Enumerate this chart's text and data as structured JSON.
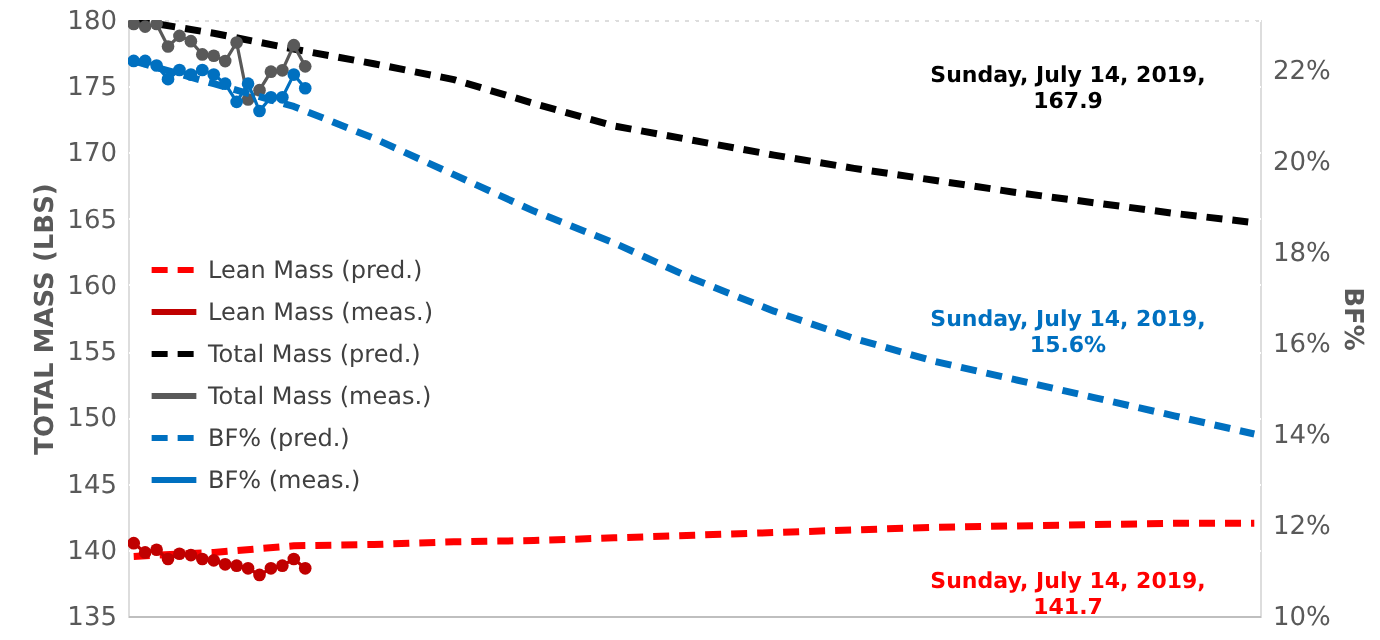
{
  "chart_data": {
    "type": "line",
    "ylabel": "TOTAL MASS (LBS)",
    "y2label": "BF%",
    "categories": [
      null,
      null,
      null,
      null,
      null,
      null,
      null,
      null,
      null,
      null,
      null,
      null,
      null,
      null,
      null,
      null,
      null,
      null,
      null,
      null,
      null,
      null,
      null,
      null,
      null,
      null,
      null,
      null,
      null,
      null,
      null,
      null,
      null,
      null,
      null,
      null,
      null,
      null,
      null,
      null,
      null,
      null,
      null,
      null,
      null,
      null,
      null,
      null,
      null,
      null,
      null,
      null,
      null,
      null,
      null,
      null,
      null,
      null,
      null,
      null,
      null,
      null,
      null,
      null,
      null,
      null,
      null,
      null,
      null,
      null,
      null,
      null,
      null,
      null,
      null,
      null,
      null,
      null,
      null,
      null,
      null,
      null,
      null,
      null,
      null,
      null,
      null,
      null,
      null,
      null,
      null,
      null,
      null,
      null,
      null,
      null,
      null,
      null,
      null
    ],
    "ylim": [
      135,
      180
    ],
    "yticks": [
      135,
      140,
      145,
      150,
      155,
      160,
      165,
      170,
      175,
      180
    ],
    "y2lim": [
      10,
      23.1
    ],
    "y2ticks": [
      {
        "value": 10,
        "label": "10%"
      },
      {
        "value": 12,
        "label": "12%"
      },
      {
        "value": 14,
        "label": "14%"
      },
      {
        "value": 16,
        "label": "16%"
      },
      {
        "value": 18,
        "label": "18%"
      },
      {
        "value": 20,
        "label": "20%"
      },
      {
        "value": 22,
        "label": "22%"
      }
    ],
    "tick_labels": "y",
    "grid": true,
    "legend": "left",
    "series": [
      {
        "name": "Lean Mass (pred.)",
        "color": "#ff0000",
        "line_style": "dashed",
        "marker": "none",
        "values": [
          139.5,
          null,
          null,
          null,
          null,
          null,
          null,
          139.8,
          null,
          null,
          null,
          null,
          null,
          null,
          140.3,
          null,
          null,
          null,
          null,
          null,
          null,
          140.4,
          null,
          null,
          null,
          null,
          null,
          null,
          140.6,
          null,
          null,
          null,
          null,
          null,
          null,
          140.7,
          null,
          null,
          null,
          null,
          null,
          null,
          140.9,
          null,
          null,
          null,
          null,
          null,
          null,
          141.1,
          null,
          null,
          null,
          null,
          null,
          null,
          141.3,
          null,
          null,
          null,
          null,
          null,
          null,
          141.5,
          null,
          null,
          null,
          null,
          null,
          null,
          141.7,
          null,
          null,
          null,
          null,
          null,
          null,
          141.8,
          null,
          null,
          null,
          null,
          null,
          null,
          141.9,
          null,
          null,
          null,
          null,
          null,
          null,
          142.0,
          null,
          null,
          null,
          null,
          null,
          null,
          142.0
        ]
      },
      {
        "name": "Lean Mass (meas.)",
        "color": "#c00000",
        "line_style": "solid",
        "marker": "circle",
        "values": [
          140.5,
          139.8,
          140.0,
          139.3,
          139.7,
          139.6,
          139.3,
          139.2,
          138.9,
          138.8,
          138.6,
          138.1,
          138.6,
          138.8,
          139.3,
          138.6,
          null,
          null,
          null,
          null,
          null,
          null,
          null,
          null,
          null,
          null,
          null,
          null,
          null,
          null,
          null,
          null,
          null,
          null,
          null,
          null,
          null,
          null,
          null,
          null,
          null,
          null,
          null,
          null,
          null,
          null,
          null,
          null,
          null,
          null,
          null,
          null,
          null,
          null,
          null,
          null,
          null,
          null,
          null,
          null,
          null,
          null,
          null,
          null,
          null,
          null,
          null,
          null,
          null,
          null,
          null,
          null,
          null,
          null,
          null,
          null,
          null,
          null,
          null,
          null,
          null,
          null,
          null,
          null,
          null,
          null,
          null,
          null,
          null,
          null,
          null,
          null,
          null,
          null,
          null,
          null,
          null,
          null,
          null
        ]
      },
      {
        "name": "Total Mass (pred.)",
        "color": "#000000",
        "line_style": "dashed",
        "marker": "none",
        "values": [
          180.0,
          null,
          null,
          null,
          null,
          null,
          null,
          179.0,
          null,
          null,
          null,
          null,
          null,
          null,
          177.8,
          null,
          null,
          null,
          null,
          null,
          null,
          176.7,
          null,
          null,
          null,
          null,
          null,
          null,
          175.5,
          null,
          null,
          null,
          null,
          null,
          null,
          173.7,
          null,
          null,
          null,
          null,
          null,
          null,
          172.0,
          null,
          null,
          null,
          null,
          null,
          null,
          170.9,
          null,
          null,
          null,
          null,
          null,
          null,
          169.8,
          null,
          null,
          null,
          null,
          null,
          null,
          168.8,
          null,
          null,
          null,
          null,
          null,
          null,
          167.9,
          null,
          null,
          null,
          null,
          null,
          null,
          167.0,
          null,
          null,
          null,
          null,
          null,
          null,
          166.2,
          null,
          null,
          null,
          null,
          null,
          null,
          165.4,
          null,
          null,
          null,
          null,
          null,
          null,
          164.7
        ]
      },
      {
        "name": "Total Mass (meas.)",
        "color": "#595959",
        "line_style": "solid",
        "marker": "circle",
        "values": [
          179.7,
          179.5,
          179.7,
          178.0,
          178.8,
          178.4,
          177.4,
          177.3,
          176.9,
          178.3,
          174.0,
          174.7,
          176.1,
          176.2,
          178.1,
          176.5,
          null,
          null,
          null,
          null,
          null,
          null,
          null,
          null,
          null,
          null,
          null,
          null,
          null,
          null,
          null,
          null,
          null,
          null,
          null,
          null,
          null,
          null,
          null,
          null,
          null,
          null,
          null,
          null,
          null,
          null,
          null,
          null,
          null,
          null,
          null,
          null,
          null,
          null,
          null,
          null,
          null,
          null,
          null,
          null,
          null,
          null,
          null,
          null,
          null,
          null,
          null,
          null,
          null,
          null,
          null,
          null,
          null,
          null,
          null,
          null,
          null,
          null,
          null,
          null,
          null,
          null,
          null,
          null,
          null,
          null,
          null,
          null,
          null,
          null,
          null,
          null,
          null,
          null,
          null,
          null,
          null,
          null,
          null
        ]
      },
      {
        "name": "BF% (pred.)",
        "color": "#0070c0",
        "line_style": "dashed",
        "marker": "none",
        "axis": "y2",
        "values": [
          22.2,
          null,
          null,
          null,
          null,
          null,
          null,
          21.7,
          null,
          null,
          null,
          null,
          null,
          null,
          21.2,
          null,
          null,
          null,
          null,
          null,
          null,
          20.5,
          null,
          null,
          null,
          null,
          null,
          null,
          19.7,
          null,
          null,
          null,
          null,
          null,
          null,
          18.9,
          null,
          null,
          null,
          null,
          null,
          null,
          18.2,
          null,
          null,
          null,
          null,
          null,
          null,
          17.4,
          null,
          null,
          null,
          null,
          null,
          null,
          16.7,
          null,
          null,
          null,
          null,
          null,
          null,
          16.1,
          null,
          null,
          null,
          null,
          null,
          null,
          15.6,
          null,
          null,
          null,
          null,
          null,
          null,
          15.2,
          null,
          null,
          null,
          null,
          null,
          null,
          14.8,
          null,
          null,
          null,
          null,
          null,
          null,
          14.4,
          null,
          null,
          null,
          null,
          null,
          null,
          14.0
        ]
      },
      {
        "name": "BF% (meas.)",
        "color": "#0070c0",
        "line_style": "solid",
        "marker": "circle",
        "axis": "y2",
        "values": [
          22.2,
          22.2,
          22.1,
          21.8,
          22.0,
          21.9,
          22.0,
          21.9,
          21.7,
          21.3,
          21.7,
          21.1,
          21.4,
          21.4,
          21.9,
          21.6,
          null,
          null,
          null,
          null,
          null,
          null,
          null,
          null,
          null,
          null,
          null,
          null,
          null,
          null,
          null,
          null,
          null,
          null,
          null,
          null,
          null,
          null,
          null,
          null,
          null,
          null,
          null,
          null,
          null,
          null,
          null,
          null,
          null,
          null,
          null,
          null,
          null,
          null,
          null,
          null,
          null,
          null,
          null,
          null,
          null,
          null,
          null,
          null,
          null,
          null,
          null,
          null,
          null,
          null,
          null,
          null,
          null,
          null,
          null,
          null,
          null,
          null,
          null,
          null,
          null,
          null,
          null,
          null,
          null,
          null,
          null,
          null,
          null,
          null,
          null,
          null,
          null,
          null,
          null,
          null,
          null,
          null,
          null
        ]
      }
    ],
    "annotations": [
      "Sunday, July 14, 2019,\n167.9",
      "Sunday, July 14, 2019,\n15.6%",
      "Sunday, July 14, 2019,\n141.7"
    ]
  }
}
